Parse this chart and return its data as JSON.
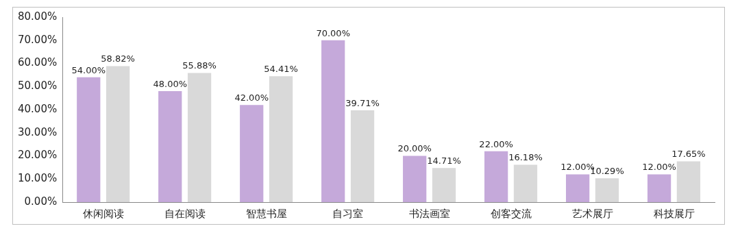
{
  "chart_data": {
    "type": "bar",
    "categories": [
      "休闲阅读",
      "自在阅读",
      "智慧书屋",
      "自习室",
      "书法画室",
      "创客交流",
      "艺术展厅",
      "科技展厅"
    ],
    "series": [
      {
        "color": "#c5a9da",
        "values": [
          54,
          48,
          42,
          70,
          20,
          22,
          12,
          12
        ],
        "value_labels": [
          "54.00%",
          "48.00%",
          "42.00%",
          "70.00%",
          "20.00%",
          "22.00%",
          "12.00%",
          "12.00%"
        ]
      },
      {
        "color": "#d9d9d9",
        "values": [
          58.82,
          55.88,
          54.41,
          39.71,
          14.71,
          16.18,
          10.29,
          17.65
        ],
        "value_labels": [
          "58.82%",
          "55.88%",
          "54.41%",
          "39.71%",
          "14.71%",
          "16.18%",
          "10.29%",
          "17.65%"
        ]
      }
    ],
    "ylim": [
      0,
      80
    ],
    "yticks": [
      {
        "value": 0,
        "label": "0.00%"
      },
      {
        "value": 10,
        "label": "10.00%"
      },
      {
        "value": 20,
        "label": "20.00%"
      },
      {
        "value": 30,
        "label": "30.00%"
      },
      {
        "value": 40,
        "label": "40.00%"
      },
      {
        "value": 50,
        "label": "50.00%"
      },
      {
        "value": 60,
        "label": "60.00%"
      },
      {
        "value": 70,
        "label": "70.00%"
      },
      {
        "value": 80,
        "label": "80.00%"
      }
    ],
    "grid": false,
    "legend": false
  }
}
